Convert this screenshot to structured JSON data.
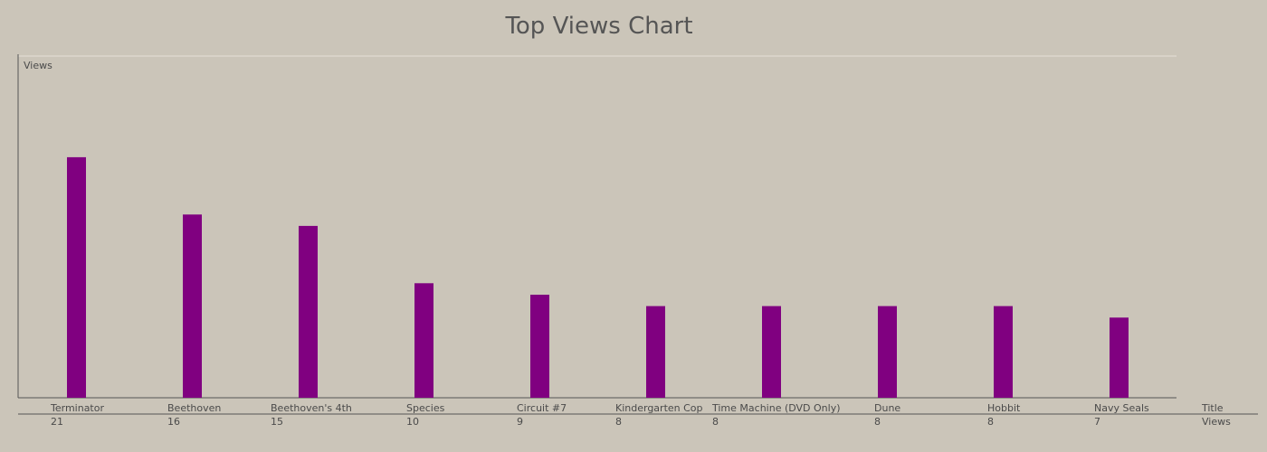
{
  "chart_data": {
    "type": "bar",
    "title": "Top Views Chart",
    "ylabel": "Views",
    "xlabel": "",
    "categories": [
      "Terminator",
      "Beethoven",
      "Beethoven's 4th",
      "Species",
      "Circuit #7",
      "Kindergarten Cop",
      "Time Machine (DVD Only)",
      "Dune",
      "Hobbit",
      "Navy Seals"
    ],
    "values": [
      21,
      16,
      15,
      10,
      9,
      8,
      8,
      8,
      8,
      7
    ],
    "ylim": [
      0,
      30
    ],
    "grid": false,
    "bar_color": "#800080",
    "table_row_labels": [
      "Title",
      "Views"
    ]
  }
}
